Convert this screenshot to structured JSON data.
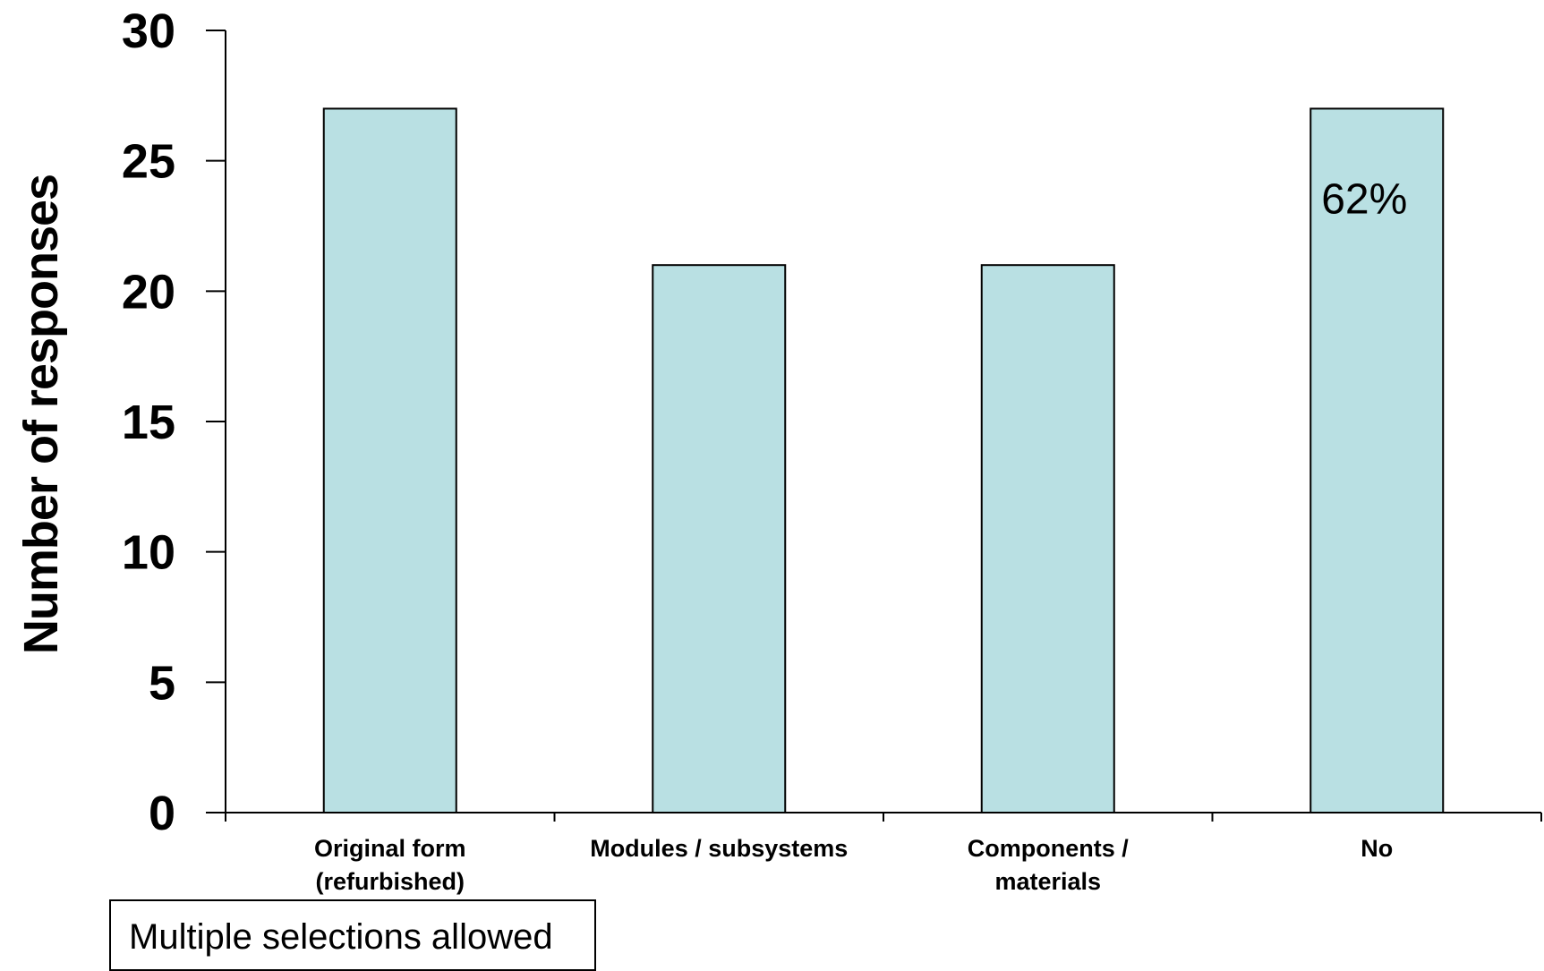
{
  "chart_data": {
    "type": "bar",
    "categories": [
      [
        "Original form",
        "(refurbished)"
      ],
      [
        "Modules / subsystems"
      ],
      [
        "Components /",
        "materials"
      ],
      [
        "No"
      ]
    ],
    "values": [
      27,
      21,
      21,
      27
    ],
    "bar_color": "#b9e0e3",
    "bar_stroke": "#000000",
    "ylabel": "Number of responses",
    "xlabel": "",
    "ylim": [
      0,
      30
    ],
    "yticks": [
      0,
      5,
      10,
      15,
      20,
      25,
      30
    ],
    "grid": false,
    "data_labels": [
      {
        "category_index": 3,
        "text": "62%"
      }
    ]
  },
  "note": "Multiple selections allowed"
}
